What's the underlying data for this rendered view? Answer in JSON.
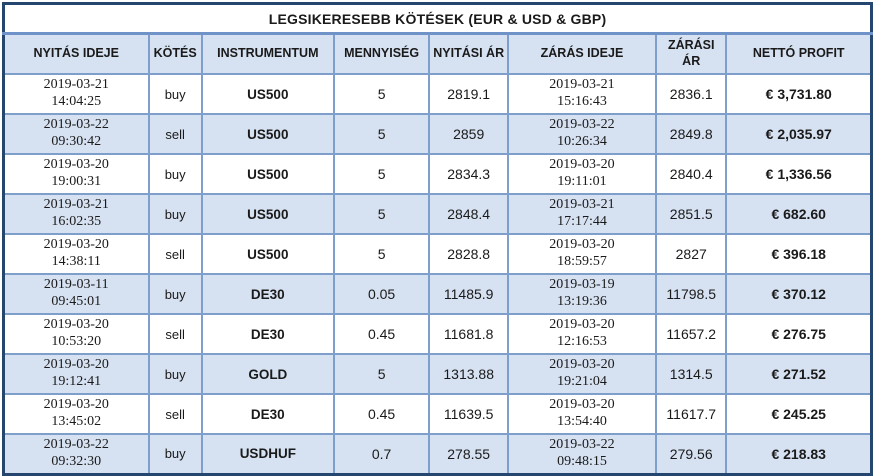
{
  "title": "LEGSIKERESEBB KÖTÉSEK (EUR & USD & GBP)",
  "table": {
    "columns": [
      "NYITÁS IDEJE",
      "KÖTÉS",
      "INSTRUMENTUM",
      "MENNYISÉG",
      "NYITÁSI ÁR",
      "ZÁRÁS IDEJE",
      "ZÁRÁSI ÁR",
      "NETTÓ PROFIT"
    ],
    "rows": [
      {
        "open_date": "2019-03-21",
        "open_time": "14:04:25",
        "side": "buy",
        "instrument": "US500",
        "qty": "5",
        "open_price": "2819.1",
        "close_date": "2019-03-21",
        "close_time": "15:16:43",
        "close_price": "2836.1",
        "profit": "€ 3,731.80"
      },
      {
        "open_date": "2019-03-22",
        "open_time": "09:30:42",
        "side": "sell",
        "instrument": "US500",
        "qty": "5",
        "open_price": "2859",
        "close_date": "2019-03-22",
        "close_time": "10:26:34",
        "close_price": "2849.8",
        "profit": "€ 2,035.97"
      },
      {
        "open_date": "2019-03-20",
        "open_time": "19:00:31",
        "side": "buy",
        "instrument": "US500",
        "qty": "5",
        "open_price": "2834.3",
        "close_date": "2019-03-20",
        "close_time": "19:11:01",
        "close_price": "2840.4",
        "profit": "€ 1,336.56"
      },
      {
        "open_date": "2019-03-21",
        "open_time": "16:02:35",
        "side": "buy",
        "instrument": "US500",
        "qty": "5",
        "open_price": "2848.4",
        "close_date": "2019-03-21",
        "close_time": "17:17:44",
        "close_price": "2851.5",
        "profit": "€ 682.60"
      },
      {
        "open_date": "2019-03-20",
        "open_time": "14:38:11",
        "side": "sell",
        "instrument": "US500",
        "qty": "5",
        "open_price": "2828.8",
        "close_date": "2019-03-20",
        "close_time": "18:59:57",
        "close_price": "2827",
        "profit": "€ 396.18"
      },
      {
        "open_date": "2019-03-11",
        "open_time": "09:45:01",
        "side": "buy",
        "instrument": "DE30",
        "qty": "0.05",
        "open_price": "11485.9",
        "close_date": "2019-03-19",
        "close_time": "13:19:36",
        "close_price": "11798.5",
        "profit": "€ 370.12"
      },
      {
        "open_date": "2019-03-20",
        "open_time": "10:53:20",
        "side": "sell",
        "instrument": "DE30",
        "qty": "0.45",
        "open_price": "11681.8",
        "close_date": "2019-03-20",
        "close_time": "12:16:53",
        "close_price": "11657.2",
        "profit": "€ 276.75"
      },
      {
        "open_date": "2019-03-20",
        "open_time": "19:12:41",
        "side": "buy",
        "instrument": "GOLD",
        "qty": "5",
        "open_price": "1313.88",
        "close_date": "2019-03-20",
        "close_time": "19:21:04",
        "close_price": "1314.5",
        "profit": "€ 271.52"
      },
      {
        "open_date": "2019-03-20",
        "open_time": "13:45:02",
        "side": "sell",
        "instrument": "DE30",
        "qty": "0.45",
        "open_price": "11639.5",
        "close_date": "2019-03-20",
        "close_time": "13:54:40",
        "close_price": "11617.7",
        "profit": "€ 245.25"
      },
      {
        "open_date": "2019-03-22",
        "open_time": "09:32:30",
        "side": "buy",
        "instrument": "USDHUF",
        "qty": "0.7",
        "open_price": "278.55",
        "close_date": "2019-03-22",
        "close_time": "09:48:15",
        "close_price": "279.56",
        "profit": "€ 218.83"
      }
    ]
  },
  "colors": {
    "outer_border": "#24466F",
    "grid_line": "#7E9FCC",
    "row_alt_fill": "#D6E1F1",
    "header_fill": "#D6E1F1",
    "text": "#1A1A1A"
  }
}
